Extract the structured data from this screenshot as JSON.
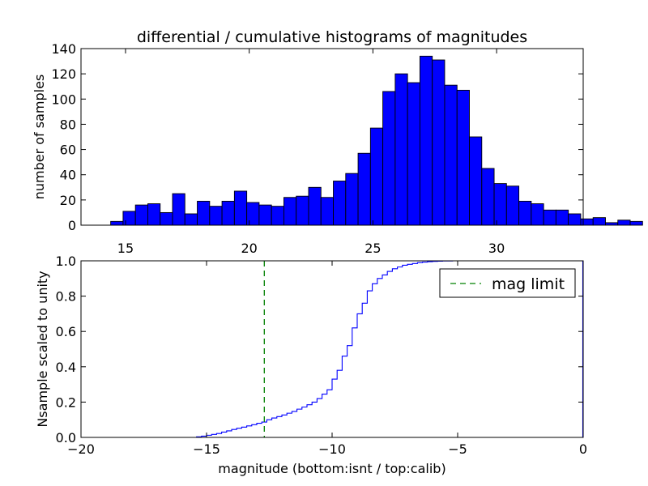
{
  "chart_data": [
    {
      "type": "bar",
      "title": "differential / cumulative histograms of magnitudes",
      "xlabel": "",
      "ylabel": "number of samples",
      "xlim": [
        13.2,
        33.5
      ],
      "ylim": [
        0,
        140
      ],
      "xticks": [
        15,
        20,
        25,
        30
      ],
      "yticks": [
        0,
        20,
        40,
        60,
        80,
        100,
        120,
        140
      ],
      "bin_width": 0.5,
      "bin_start": 14.4,
      "values": [
        3,
        11,
        16,
        17,
        10,
        25,
        9,
        19,
        15,
        19,
        27,
        18,
        16,
        15,
        22,
        23,
        30,
        22,
        35,
        41,
        57,
        77,
        106,
        120,
        113,
        134,
        131,
        111,
        107,
        70,
        45,
        33,
        31,
        19,
        17,
        12,
        12,
        9,
        5,
        6,
        2,
        4,
        3,
        0,
        2
      ],
      "bar_color": "#0000ff"
    },
    {
      "type": "line",
      "title": "",
      "xlabel": "magnitude (bottom:isnt / top:calib)",
      "ylabel": "Nsample scaled to unity",
      "xlim": [
        -20,
        0
      ],
      "ylim": [
        0.0,
        1.0
      ],
      "xticks": [
        -20,
        -15,
        -10,
        -5,
        0
      ],
      "yticks": [
        0.0,
        0.2,
        0.4,
        0.6,
        0.8,
        1.0
      ],
      "series": [
        {
          "name": "cumulative",
          "style": "steps",
          "color": "#0000ff",
          "x": [
            -20,
            -15.4,
            -15.2,
            -15.0,
            -14.8,
            -14.6,
            -14.4,
            -14.2,
            -14.0,
            -13.8,
            -13.6,
            -13.4,
            -13.2,
            -13.0,
            -12.8,
            -12.6,
            -12.4,
            -12.2,
            -12.0,
            -11.8,
            -11.6,
            -11.4,
            -11.2,
            -11.0,
            -10.8,
            -10.6,
            -10.4,
            -10.2,
            -10.0,
            -9.8,
            -9.6,
            -9.4,
            -9.2,
            -9.0,
            -8.8,
            -8.6,
            -8.4,
            -8.2,
            -8.0,
            -7.8,
            -7.6,
            -7.4,
            -7.2,
            -7.0,
            -6.8,
            -6.6,
            -6.4,
            -6.2,
            -6.0,
            -5.8,
            -5.6,
            -5.4,
            -5.2,
            -5.0,
            0
          ],
          "y": [
            0,
            0.003,
            0.007,
            0.012,
            0.017,
            0.022,
            0.03,
            0.037,
            0.045,
            0.052,
            0.058,
            0.065,
            0.072,
            0.08,
            0.087,
            0.1,
            0.11,
            0.118,
            0.127,
            0.137,
            0.147,
            0.16,
            0.172,
            0.185,
            0.2,
            0.22,
            0.245,
            0.27,
            0.33,
            0.38,
            0.46,
            0.52,
            0.62,
            0.7,
            0.76,
            0.83,
            0.87,
            0.9,
            0.92,
            0.94,
            0.955,
            0.965,
            0.975,
            0.98,
            0.985,
            0.99,
            0.993,
            0.995,
            0.997,
            0.998,
            0.999,
            0.999,
            1.0,
            1.0,
            1.0
          ]
        }
      ],
      "vlines": [
        {
          "name": "mag limit",
          "x": -12.7,
          "color": "#008000",
          "style": "dashed"
        }
      ],
      "legend": {
        "entries": [
          "mag limit"
        ],
        "position": "top-right"
      }
    }
  ]
}
